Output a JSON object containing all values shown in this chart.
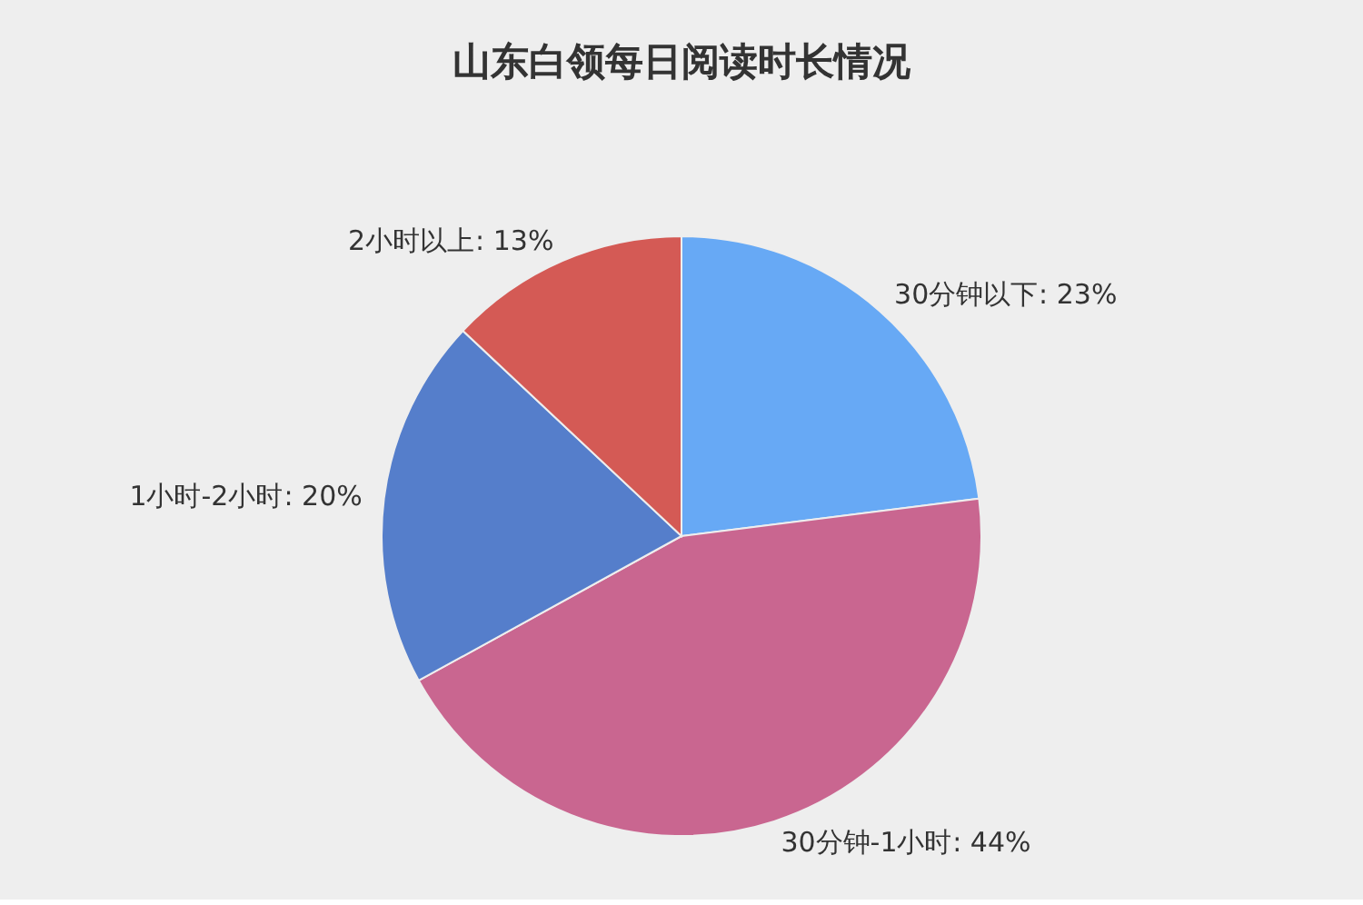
{
  "chart_data": {
    "type": "pie",
    "title": "山东白领每日阅读时长情况",
    "categories": [
      "30分钟以下",
      "30分钟-1小时",
      "1小时-2小时",
      "2小时以上"
    ],
    "values": [
      23,
      44,
      20,
      13
    ],
    "colors": [
      "#67a9f5",
      "#c96690",
      "#557ecb",
      "#d45a55"
    ],
    "value_labels": [
      ": 23%",
      ": 44%",
      ": 20%",
      ": 13%"
    ],
    "legend": false
  }
}
